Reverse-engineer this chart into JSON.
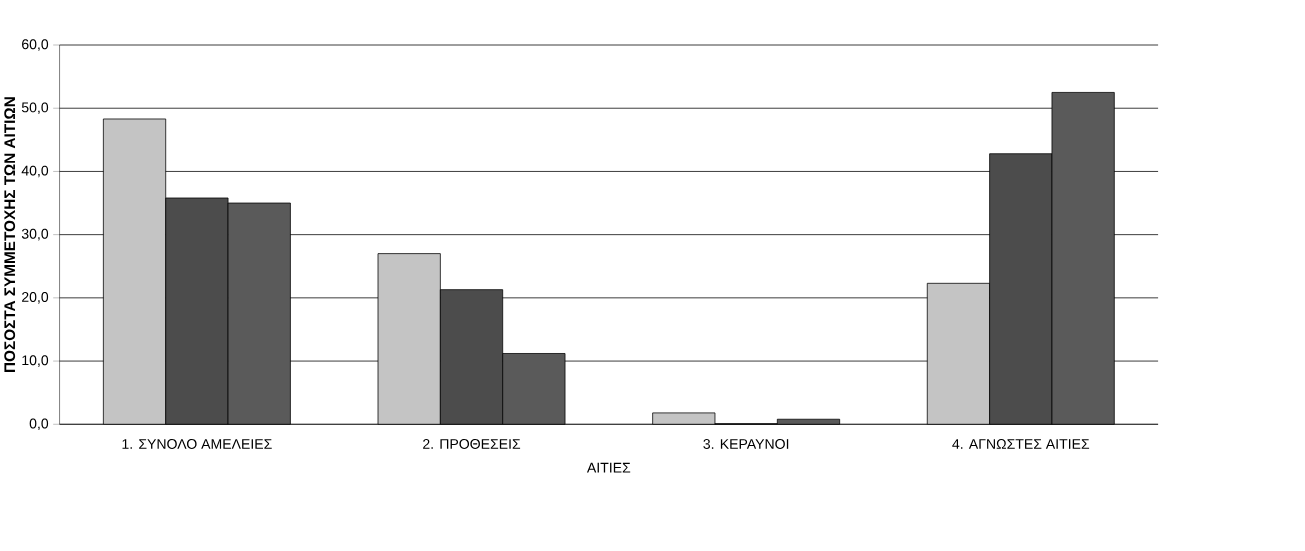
{
  "chart_data": {
    "type": "bar",
    "xlabel": "ΑΙΤΙΕΣ",
    "ylabel": "ΠΟΣΟΣΤΑ ΣΥΜΜΕΤΟΧΗΣ ΤΩΝ ΑΙΤΙΩΝ",
    "categories": [
      "1. ΣΥΝΟΛΟ ΑΜΕΛΕΙΕΣ",
      "2. ΠΡΟΘΕΣΕΙΣ",
      "3. ΚΕΡΑΥΝΟΙ",
      "4. ΑΓΝΩΣΤΕΣ ΑΙΤΙΕΣ"
    ],
    "series": [
      {
        "color": "#c4c4c4",
        "values": [
          48.3,
          27.0,
          1.8,
          22.3
        ]
      },
      {
        "color": "#4c4c4c",
        "values": [
          35.8,
          21.3,
          0.1,
          42.8
        ]
      },
      {
        "color": "#5a5a5a",
        "values": [
          35.0,
          11.2,
          0.8,
          52.5
        ]
      }
    ],
    "ylim": [
      0,
      60
    ],
    "yticks": [
      {
        "value": 0,
        "label": "0,0"
      },
      {
        "value": 10,
        "label": "10,0"
      },
      {
        "value": 20,
        "label": "20,0"
      },
      {
        "value": 30,
        "label": "30,0"
      },
      {
        "value": 40,
        "label": "40,0"
      },
      {
        "value": 50,
        "label": "50,0"
      },
      {
        "value": 60,
        "label": "60,0"
      }
    ],
    "grid": "y",
    "legend": false
  }
}
